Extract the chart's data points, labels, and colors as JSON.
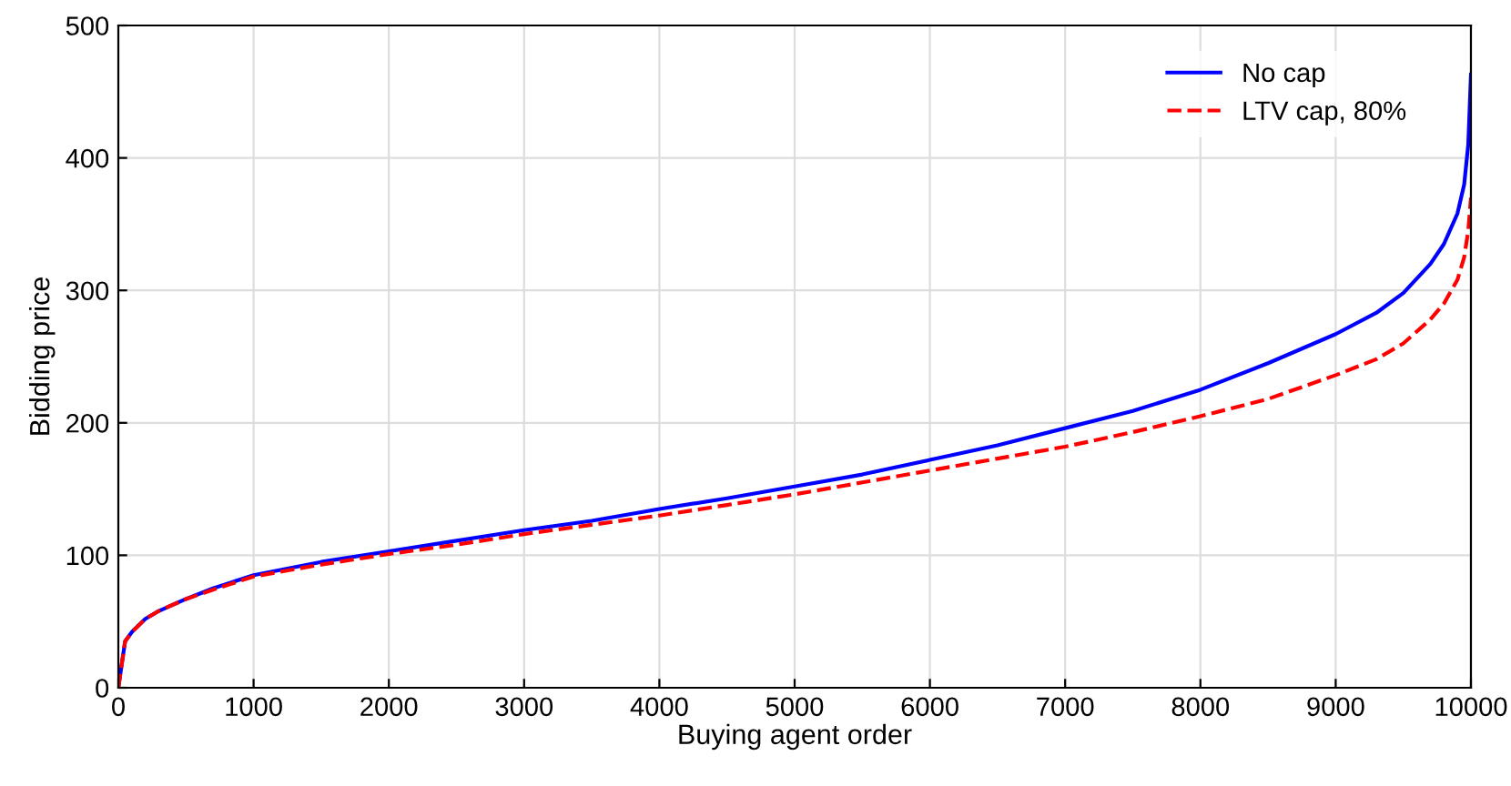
{
  "chart_data": {
    "type": "line",
    "xlabel": "Buying agent order",
    "ylabel": "Bidding price",
    "xlim": [
      0,
      10000
    ],
    "ylim": [
      0,
      500
    ],
    "xticks": [
      0,
      1000,
      2000,
      3000,
      4000,
      5000,
      6000,
      7000,
      8000,
      9000,
      10000
    ],
    "yticks": [
      0,
      100,
      200,
      300,
      400,
      500
    ],
    "grid": true,
    "legend": "top right",
    "series": [
      {
        "name": "No cap",
        "color": "#0000ff",
        "line_style": "solid",
        "x": [
          0,
          50,
          100,
          200,
          300,
          500,
          700,
          1000,
          1500,
          2000,
          2500,
          3000,
          3500,
          4000,
          4500,
          5000,
          5500,
          6000,
          6500,
          7000,
          7500,
          8000,
          8500,
          9000,
          9300,
          9500,
          9700,
          9800,
          9900,
          9950,
          9980,
          10000
        ],
        "values": [
          0,
          35,
          42,
          52,
          58,
          67,
          75,
          85,
          95,
          103,
          111,
          119,
          126,
          135,
          143,
          152,
          161,
          172,
          183,
          196,
          209,
          225,
          245,
          267,
          283,
          298,
          320,
          335,
          358,
          380,
          410,
          463
        ]
      },
      {
        "name": "LTV cap, 80%",
        "color": "#ff0000",
        "line_style": "dashed",
        "x": [
          0,
          50,
          100,
          200,
          300,
          500,
          700,
          1000,
          1500,
          2000,
          2500,
          3000,
          3500,
          4000,
          4500,
          5000,
          5500,
          6000,
          6500,
          7000,
          7500,
          8000,
          8500,
          9000,
          9300,
          9500,
          9700,
          9800,
          9900,
          9950,
          9980,
          10000
        ],
        "values": [
          0,
          35,
          42,
          52,
          58,
          67,
          74,
          84,
          93,
          101,
          108,
          116,
          123,
          130,
          138,
          146,
          155,
          164,
          173,
          182,
          193,
          205,
          218,
          236,
          248,
          260,
          278,
          290,
          308,
          325,
          345,
          370
        ]
      }
    ]
  }
}
